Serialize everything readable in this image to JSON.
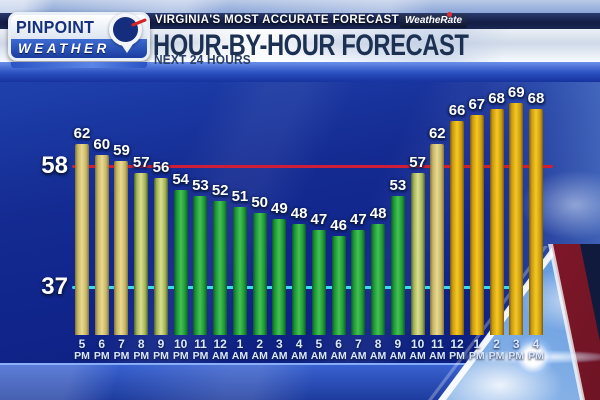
{
  "brand": {
    "logo_line1": "PINPOINT",
    "logo_line2": "WEATHER"
  },
  "header": {
    "tagline": "VIRGINIA'S MOST ACCURATE FORECAST",
    "badge": "WeatheRate",
    "title": "HOUR-BY-HOUR FORECAST",
    "subtitle": "NEXT 24 HOURS"
  },
  "chart_data": {
    "type": "bar",
    "title": "HOUR-BY-HOUR FORECAST",
    "subtitle": "NEXT 24 HOURS",
    "categories": [
      "5 PM",
      "6 PM",
      "7 PM",
      "8 PM",
      "9 PM",
      "10 PM",
      "11 PM",
      "12 AM",
      "1 AM",
      "2 AM",
      "3 AM",
      "4 AM",
      "5 AM",
      "6 AM",
      "7 AM",
      "8 AM",
      "9 AM",
      "10 AM",
      "11 AM",
      "12 PM",
      "1 PM",
      "2 PM",
      "3 PM",
      "4 PM"
    ],
    "values": [
      62,
      60,
      59,
      57,
      56,
      54,
      53,
      52,
      51,
      50,
      49,
      48,
      47,
      46,
      47,
      48,
      53,
      57,
      62,
      66,
      67,
      68,
      69,
      68
    ],
    "bar_color_classes": [
      "paleGold",
      "paleGold",
      "paleGold",
      "yellowGreen",
      "yellowGreen",
      "green",
      "green",
      "green",
      "green",
      "green",
      "green",
      "green",
      "green",
      "green",
      "green",
      "green",
      "green",
      "yellowGreen",
      "paleGold",
      "gold",
      "gold",
      "gold",
      "gold",
      "gold"
    ],
    "reference_lines": [
      {
        "label": "58",
        "value": 58,
        "color": "#cf1f38"
      },
      {
        "label": "37",
        "value": 37,
        "color": "#3bd8f0"
      }
    ],
    "ylim": [
      29,
      76
    ],
    "grid": false,
    "legend": "none"
  },
  "colors": {
    "bar_gold_center": "#f7c821",
    "bar_gold_edge": "#7a5a08",
    "bar_pale_gold_center": "#ead98f",
    "bar_pale_gold_edge": "#83742f",
    "bar_yellow_green_center": "#d9df8e",
    "bar_yellow_green_edge": "#4e6522",
    "bar_green_center": "#43c251",
    "bar_green_edge": "#0a5c22",
    "chart_background": "#142a8e",
    "reference_red": "#cf1f38",
    "reference_cyan": "#3bd8f0"
  }
}
